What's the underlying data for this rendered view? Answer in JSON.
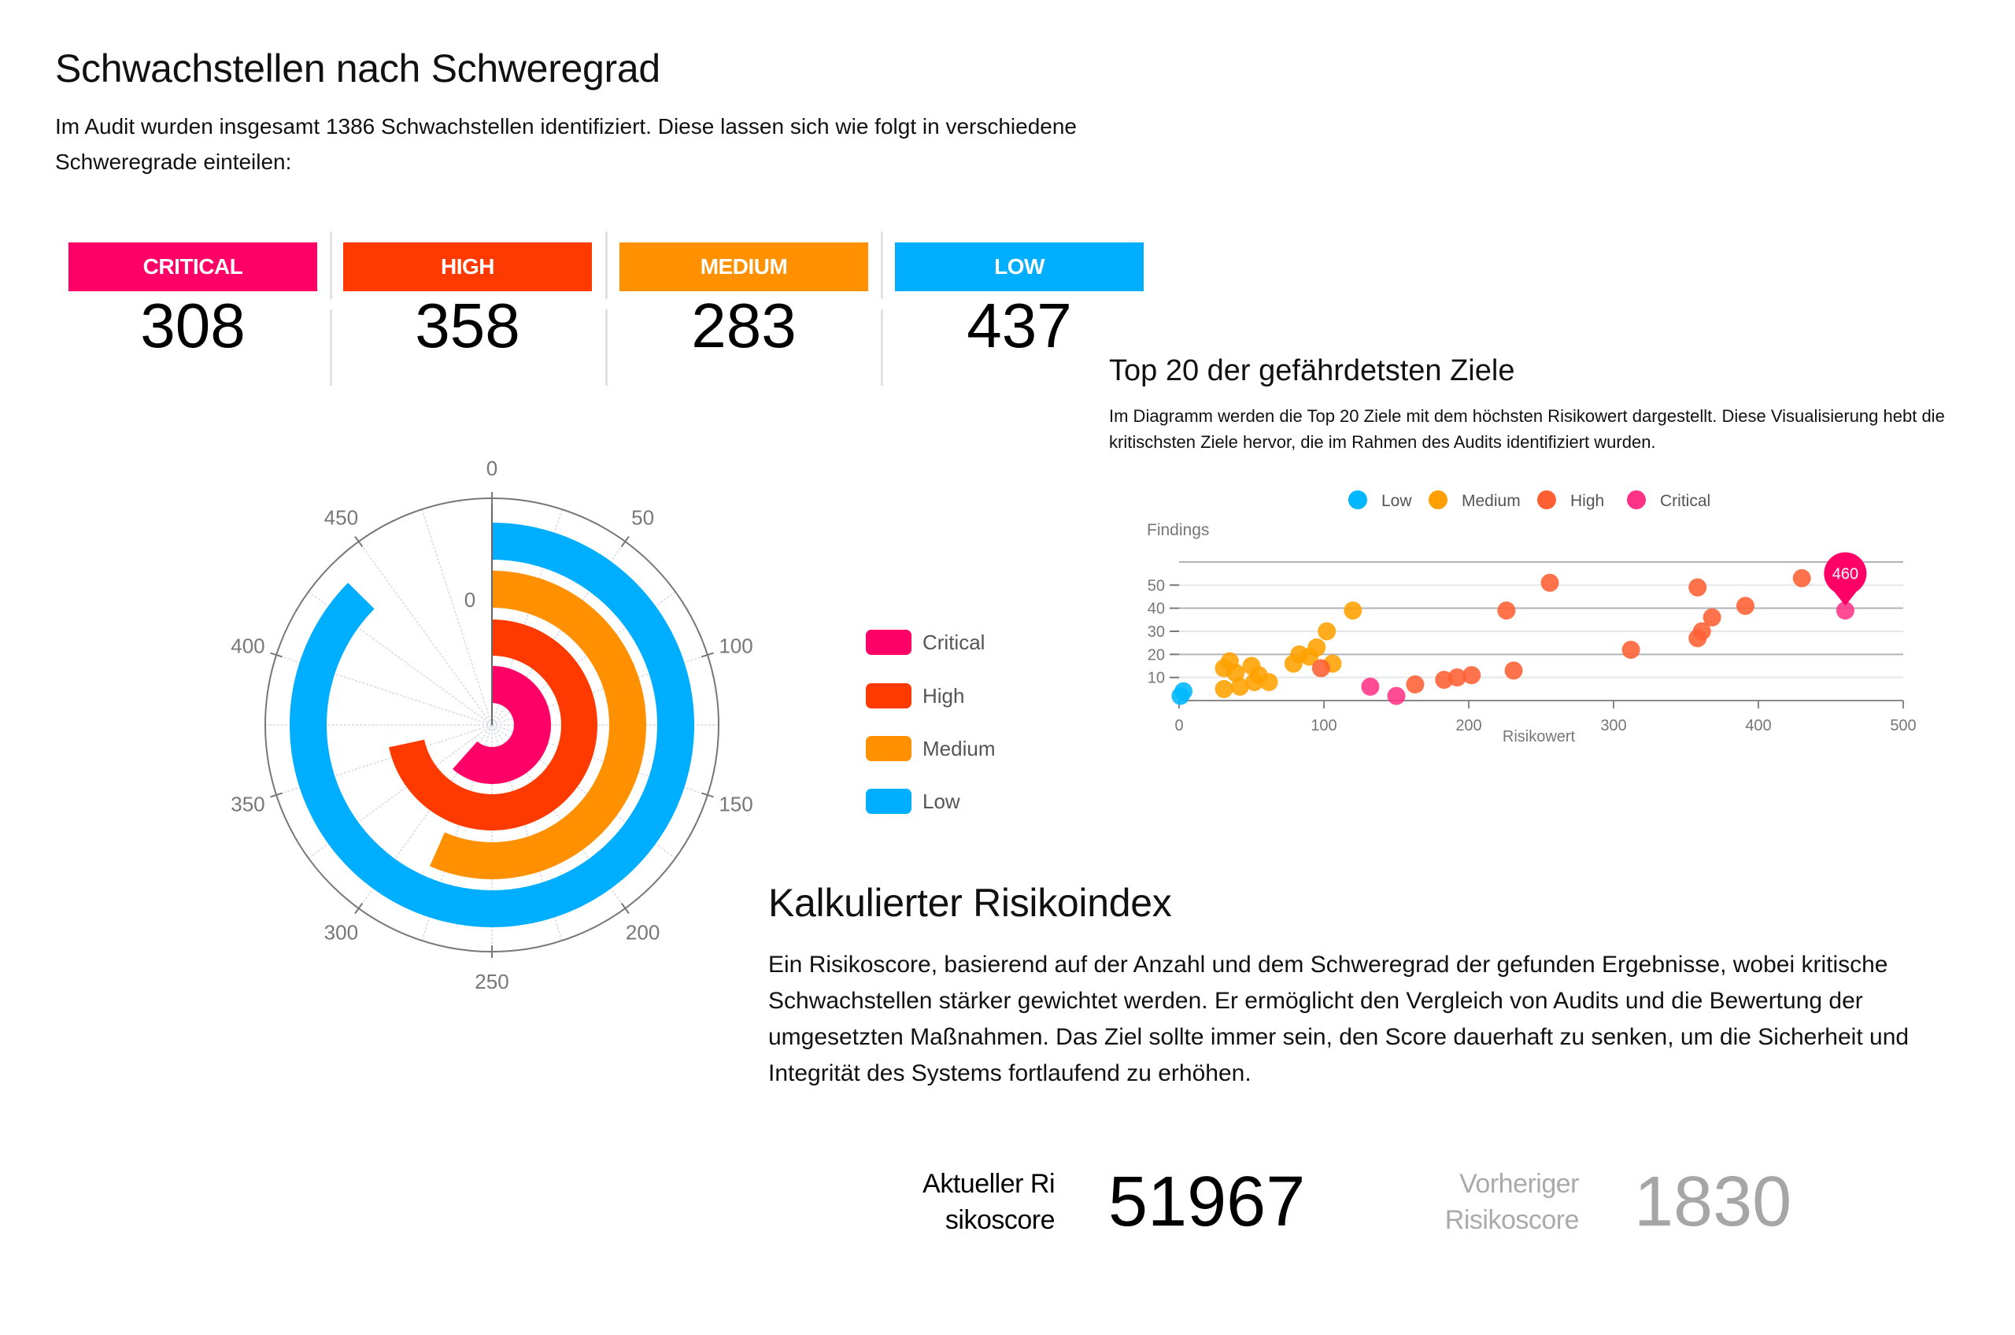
{
  "severity_section": {
    "title": "Schwachstellen nach Schweregrad",
    "intro": "Im Audit wurden insgesamt 1386 Schwachstellen identifiziert. Diese lassen sich wie folgt in verschiedene Schweregrade einteilen:",
    "badges": [
      {
        "label": "CRITICAL",
        "value": "308",
        "color": "#ff0066"
      },
      {
        "label": "HIGH",
        "value": "358",
        "color": "#ff3a00"
      },
      {
        "label": "MEDIUM",
        "value": "283",
        "color": "#ff9000"
      },
      {
        "label": "LOW",
        "value": "437",
        "color": "#00aeff"
      }
    ]
  },
  "polar_legend": [
    {
      "label": "Critical",
      "color": "#ff0066"
    },
    {
      "label": "High",
      "color": "#ff3a00"
    },
    {
      "label": "Medium",
      "color": "#ff9000"
    },
    {
      "label": "Low",
      "color": "#00aeff"
    }
  ],
  "targets_section": {
    "title": "Top 20 der gefährdetsten Ziele",
    "description": "Im Diagramm werden die Top 20 Ziele mit dem höchsten Risikowert dargestellt. Diese Visualisierung hebt die kritischsten Ziele hervor, die im Rahmen des Audits identifiziert wurden."
  },
  "risk_section": {
    "title": "Kalkulierter Risikoindex",
    "description": "Ein Risikoscore, basierend auf der Anzahl und dem Schweregrad der gefunden Ergebnisse, wobei kritische Schwachstellen stärker gewichtet werden. Er ermöglicht den Vergleich von Audits und die Bewertung der umgesetzten Maßnahmen. Das Ziel sollte immer sein, den Score dauerhaft zu senken, um die Sicherheit und Integrität des Systems fortlaufend zu erhöhen.",
    "current_label": "Aktueller Risikoscore",
    "current_value": "51967",
    "previous_label": "Vorheriger Risikoscore",
    "previous_value": "1830"
  },
  "chart_data": [
    {
      "type": "radial-bar",
      "title": "",
      "angular_axis": {
        "min": 0,
        "max": 500,
        "ticks": [
          0,
          50,
          100,
          150,
          200,
          250,
          300,
          350,
          400,
          450
        ]
      },
      "radial_axis_label": "0",
      "categories": [
        "Critical",
        "High",
        "Medium",
        "Low"
      ],
      "values": [
        308,
        358,
        283,
        437
      ],
      "colors": [
        "#ff0066",
        "#ff3a00",
        "#ff9000",
        "#00aeff"
      ],
      "legend": "right"
    },
    {
      "type": "scatter",
      "title": "",
      "xlabel": "Risikowert",
      "ylabel": "Findings",
      "xlim": [
        0,
        500
      ],
      "ylim": [
        0,
        60
      ],
      "xticks": [
        0,
        100,
        200,
        300,
        400,
        500
      ],
      "yticks": [
        10,
        20,
        30,
        40,
        50
      ],
      "grid": true,
      "legend": "top",
      "annotation": {
        "label": "460",
        "x": 460,
        "y": 39,
        "series": "Critical"
      },
      "series": [
        {
          "name": "Low",
          "color": "#00b7ff",
          "points": [
            [
              1,
              2
            ],
            [
              3,
              4
            ]
          ]
        },
        {
          "name": "Medium",
          "color": "#ffa000",
          "points": [
            [
              35,
              17
            ],
            [
              31,
              14
            ],
            [
              39,
              12
            ],
            [
              31,
              5
            ],
            [
              42,
              6
            ],
            [
              50,
              15
            ],
            [
              55,
              11
            ],
            [
              52,
              8
            ],
            [
              62,
              8
            ],
            [
              79,
              16
            ],
            [
              83,
              20
            ],
            [
              90,
              19
            ],
            [
              95,
              23
            ],
            [
              102,
              30
            ],
            [
              106,
              16
            ],
            [
              120,
              39
            ]
          ]
        },
        {
          "name": "High",
          "color": "#ff6033",
          "points": [
            [
              98,
              14
            ],
            [
              163,
              7
            ],
            [
              183,
              9
            ],
            [
              192,
              10
            ],
            [
              202,
              11
            ],
            [
              226,
              39
            ],
            [
              231,
              13
            ],
            [
              256,
              51
            ],
            [
              312,
              22
            ],
            [
              358,
              49
            ],
            [
              358,
              27
            ],
            [
              361,
              30
            ],
            [
              368,
              36
            ],
            [
              391,
              41
            ],
            [
              430,
              53
            ]
          ]
        },
        {
          "name": "Critical",
          "color": "#ff3385",
          "points": [
            [
              132,
              6
            ],
            [
              150,
              2
            ],
            [
              460,
              39
            ]
          ]
        }
      ]
    }
  ]
}
